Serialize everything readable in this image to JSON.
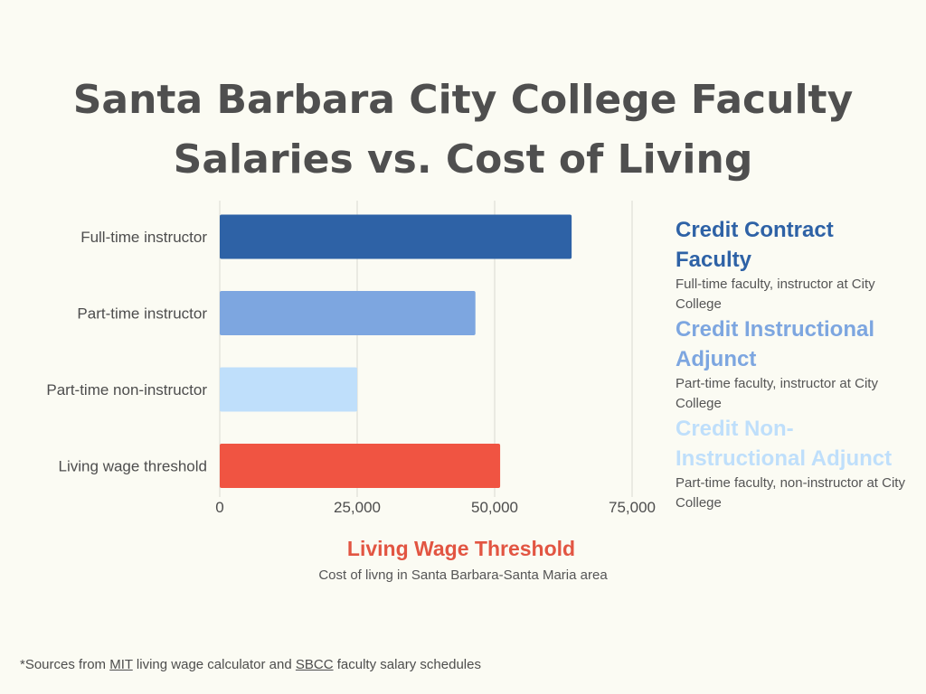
{
  "title_line1": "Santa Barbara City College Faculty",
  "title_line2": "Salaries vs. Cost of Living",
  "chart_data": {
    "type": "bar",
    "orientation": "horizontal",
    "categories": [
      "Full-time instructor",
      "Part-time instructor",
      "Part-time non-instructor",
      "Living wage threshold"
    ],
    "values": [
      64000,
      46500,
      25000,
      51000
    ],
    "colors": [
      "#2e62a6",
      "#7da6e0",
      "#bfdffb",
      "#f05442"
    ],
    "xticks": [
      0,
      25000,
      50000,
      75000
    ],
    "xtick_labels": [
      "0",
      "25,000",
      "50,000",
      "75,000"
    ],
    "xlim": [
      0,
      75000
    ],
    "grid": "vertical",
    "legend_placement": "right"
  },
  "legend": [
    {
      "title": "Credit Contract Faculty",
      "desc": "Full-time faculty, instructor at City College",
      "color": "#2e62a6"
    },
    {
      "title": "Credit Instructional Adjunct",
      "desc": "Part-time faculty, instructor at City College",
      "color": "#7da6e0"
    },
    {
      "title": "Credit Non-Instructional Adjunct",
      "desc": "Part-time faculty, non-instructor at City College",
      "color": "#bfdffb"
    }
  ],
  "living_wage": {
    "title": "Living Wage Threshold",
    "desc": "Cost of livng in Santa Barbara-Santa Maria area",
    "color": "#e25542"
  },
  "sources": {
    "prefix": "*Sources from ",
    "link1": "MIT",
    "middle": " living wage calculator and ",
    "link2": "SBCC",
    "suffix": " faculty salary schedules"
  }
}
